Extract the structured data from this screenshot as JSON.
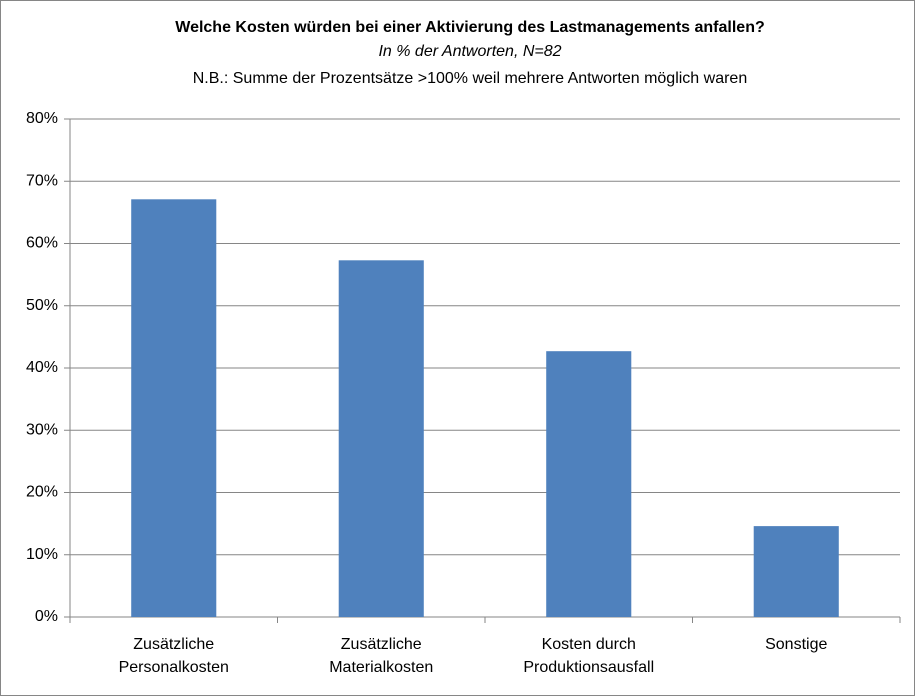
{
  "chart_data": {
    "type": "bar",
    "title": "Welche Kosten würden bei einer Aktivierung des Lastmanagements anfallen?",
    "subtitle": "In % der Antworten, N=82",
    "note": "N.B.: Summe der Prozentsätze >100% weil mehrere Antworten möglich waren",
    "categories": [
      [
        "Zusätzliche",
        "Personalkosten"
      ],
      [
        "Zusätzliche",
        "Materialkosten"
      ],
      [
        "Kosten durch",
        "Produktionsausfall"
      ],
      [
        "Sonstige"
      ]
    ],
    "values": [
      67.1,
      57.3,
      42.7,
      14.6
    ],
    "color": "#4f81bd",
    "ylim": [
      0,
      80
    ],
    "yticks": [
      {
        "value": 0,
        "label": "0%"
      },
      {
        "value": 10,
        "label": "10%"
      },
      {
        "value": 20,
        "label": "20%"
      },
      {
        "value": 30,
        "label": "30%"
      },
      {
        "value": 40,
        "label": "40%"
      },
      {
        "value": 50,
        "label": "50%"
      },
      {
        "value": 60,
        "label": "60%"
      },
      {
        "value": 70,
        "label": "70%"
      },
      {
        "value": 80,
        "label": "80%"
      }
    ],
    "grid": true
  }
}
